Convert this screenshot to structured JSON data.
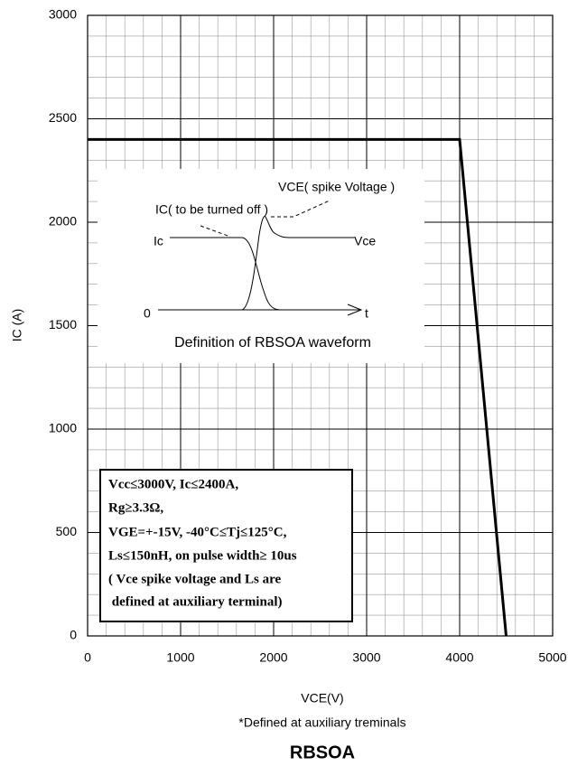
{
  "chart_data": {
    "type": "line",
    "title": "RBSOA",
    "xlabel": "VCE(V)",
    "ylabel": "IC (A)",
    "note": "*Defined at auxiliary treminals",
    "x": [
      0,
      4000,
      4500
    ],
    "series": [
      {
        "color": "#000000",
        "values": [
          2400,
          2400,
          0
        ]
      }
    ],
    "xlim": [
      0,
      5000
    ],
    "xticks": [
      0,
      1000,
      2000,
      3000,
      4000,
      5000
    ],
    "ylim": [
      0,
      3000
    ],
    "yticks": [
      0,
      500,
      1000,
      1500,
      2000,
      2500,
      3000
    ],
    "grid": true,
    "inset": {
      "ic_label": "IC( to be turned off )",
      "vce_label": "VCE( spike Voltage )",
      "ic": "Ic",
      "vce": "Vce",
      "zero": "0",
      "t": "t",
      "caption": "Definition of RBSOA waveform"
    },
    "conditions": [
      "Vcc≤3000V, Ic≤2400A,",
      "Rg≥3.3Ω,",
      "VGE=+-15V, -40°C≤Tj≤125°C,",
      "Ls≤150nH, on pulse width≥ 10us",
      "( Vce spike voltage and Ls are",
      " defined at auxiliary terminal)"
    ]
  }
}
